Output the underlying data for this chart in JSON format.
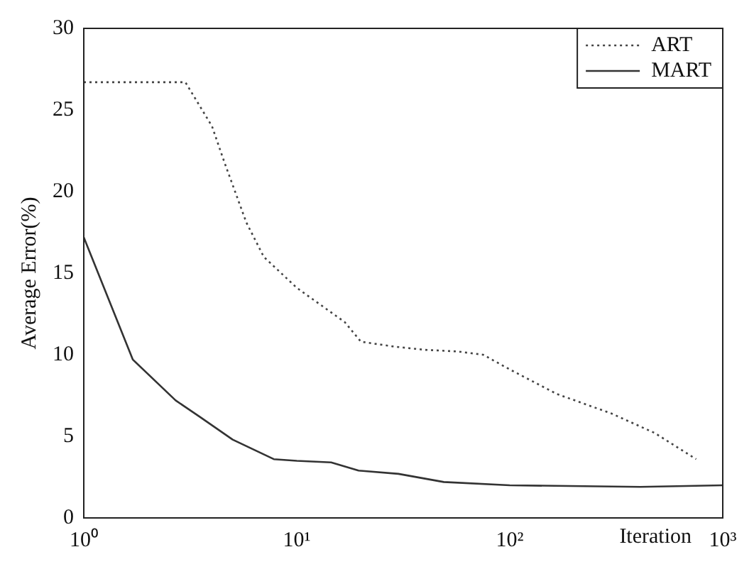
{
  "chart_data": {
    "type": "line",
    "xlabel": "Iteration",
    "ylabel": "Average Error(%)",
    "log": "x",
    "xlim": [
      1,
      1000
    ],
    "xticks": [
      {
        "value": 1,
        "label": "10⁰"
      },
      {
        "value": 10,
        "label": "10¹"
      },
      {
        "value": 100,
        "label": "10²"
      },
      {
        "value": 1000,
        "label": "10³"
      }
    ],
    "ylim": [
      0,
      30
    ],
    "yticks": [
      0,
      5,
      10,
      15,
      20,
      25,
      30
    ],
    "grid": false,
    "legend": "top right",
    "marker": "none",
    "series": [
      {
        "name": "ART",
        "color": "#444444",
        "line_style": "dotted",
        "x": [
          1,
          2,
          3,
          4,
          4.6,
          5.8,
          7,
          10,
          16.8,
          20,
          28.6,
          40,
          57,
          75,
          100,
          166,
          300,
          480,
          750
        ],
        "values": [
          26.7,
          26.7,
          26.7,
          24,
          21.7,
          18.1,
          16,
          14.1,
          12,
          10.8,
          10.5,
          10.3,
          10.2,
          10,
          9.1,
          7.6,
          6.4,
          5.2,
          3.6
        ]
      },
      {
        "name": "MART",
        "color": "#333333",
        "line_style": "solid",
        "x": [
          1,
          1.7,
          2.7,
          3.5,
          5,
          7.8,
          10,
          14.5,
          19.5,
          30,
          49,
          100,
          410,
          1000
        ],
        "values": [
          17.2,
          9.7,
          7.2,
          6.2,
          4.8,
          3.6,
          3.5,
          3.4,
          2.9,
          2.7,
          2.2,
          2.0,
          1.9,
          2.0
        ]
      }
    ]
  }
}
